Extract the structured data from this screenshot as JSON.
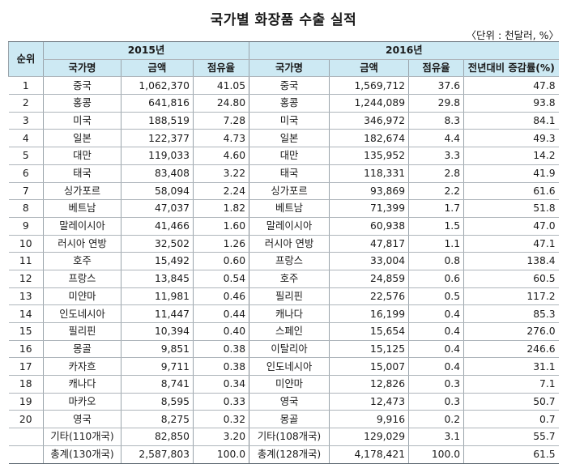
{
  "title": "국가별 화장품 수출 실적",
  "unit": "〈단위 : 천달러, %〉",
  "headers": {
    "rank": "순위",
    "y2015": "2015년",
    "y2016": "2016년",
    "country": "국가명",
    "amount": "금액",
    "share": "점유율",
    "growth": "전년대비 증감률(%)"
  },
  "rows": [
    {
      "rank": "1",
      "c15": "중국",
      "a15": "1,062,370",
      "s15": "41.05",
      "c16": "중국",
      "a16": "1,569,712",
      "s16": "37.6",
      "g16": "47.8"
    },
    {
      "rank": "2",
      "c15": "홍콩",
      "a15": "641,816",
      "s15": "24.80",
      "c16": "홍콩",
      "a16": "1,244,089",
      "s16": "29.8",
      "g16": "93.8"
    },
    {
      "rank": "3",
      "c15": "미국",
      "a15": "188,519",
      "s15": "7.28",
      "c16": "미국",
      "a16": "346,972",
      "s16": "8.3",
      "g16": "84.1"
    },
    {
      "rank": "4",
      "c15": "일본",
      "a15": "122,377",
      "s15": "4.73",
      "c16": "일본",
      "a16": "182,674",
      "s16": "4.4",
      "g16": "49.3"
    },
    {
      "rank": "5",
      "c15": "대만",
      "a15": "119,033",
      "s15": "4.60",
      "c16": "대만",
      "a16": "135,952",
      "s16": "3.3",
      "g16": "14.2"
    },
    {
      "rank": "6",
      "c15": "태국",
      "a15": "83,408",
      "s15": "3.22",
      "c16": "태국",
      "a16": "118,331",
      "s16": "2.8",
      "g16": "41.9"
    },
    {
      "rank": "7",
      "c15": "싱가포르",
      "a15": "58,094",
      "s15": "2.24",
      "c16": "싱가포르",
      "a16": "93,869",
      "s16": "2.2",
      "g16": "61.6"
    },
    {
      "rank": "8",
      "c15": "베트남",
      "a15": "47,037",
      "s15": "1.82",
      "c16": "베트남",
      "a16": "71,399",
      "s16": "1.7",
      "g16": "51.8"
    },
    {
      "rank": "9",
      "c15": "말레이시아",
      "a15": "41,466",
      "s15": "1.60",
      "c16": "말레이시아",
      "a16": "60,938",
      "s16": "1.5",
      "g16": "47.0"
    },
    {
      "rank": "10",
      "c15": "러시아 연방",
      "a15": "32,502",
      "s15": "1.26",
      "c16": "러시아 연방",
      "a16": "47,817",
      "s16": "1.1",
      "g16": "47.1"
    },
    {
      "rank": "11",
      "c15": "호주",
      "a15": "15,492",
      "s15": "0.60",
      "c16": "프랑스",
      "a16": "33,004",
      "s16": "0.8",
      "g16": "138.4"
    },
    {
      "rank": "12",
      "c15": "프랑스",
      "a15": "13,845",
      "s15": "0.54",
      "c16": "호주",
      "a16": "24,859",
      "s16": "0.6",
      "g16": "60.5"
    },
    {
      "rank": "13",
      "c15": "미얀마",
      "a15": "11,981",
      "s15": "0.46",
      "c16": "필리핀",
      "a16": "22,576",
      "s16": "0.5",
      "g16": "117.2"
    },
    {
      "rank": "14",
      "c15": "인도네시아",
      "a15": "11,447",
      "s15": "0.44",
      "c16": "캐나다",
      "a16": "16,199",
      "s16": "0.4",
      "g16": "85.3"
    },
    {
      "rank": "15",
      "c15": "필리핀",
      "a15": "10,394",
      "s15": "0.40",
      "c16": "스페인",
      "a16": "15,654",
      "s16": "0.4",
      "g16": "276.0"
    },
    {
      "rank": "16",
      "c15": "몽골",
      "a15": "9,851",
      "s15": "0.38",
      "c16": "이탈리아",
      "a16": "15,125",
      "s16": "0.4",
      "g16": "246.6"
    },
    {
      "rank": "17",
      "c15": "카자흐",
      "a15": "9,711",
      "s15": "0.38",
      "c16": "인도네시아",
      "a16": "15,007",
      "s16": "0.4",
      "g16": "31.1"
    },
    {
      "rank": "18",
      "c15": "캐나다",
      "a15": "8,741",
      "s15": "0.34",
      "c16": "미얀마",
      "a16": "12,826",
      "s16": "0.3",
      "g16": "7.1"
    },
    {
      "rank": "19",
      "c15": "마카오",
      "a15": "8,595",
      "s15": "0.33",
      "c16": "영국",
      "a16": "12,473",
      "s16": "0.3",
      "g16": "50.7"
    },
    {
      "rank": "20",
      "c15": "영국",
      "a15": "8,275",
      "s15": "0.32",
      "c16": "몽골",
      "a16": "9,916",
      "s16": "0.2",
      "g16": "0.7"
    },
    {
      "rank": "",
      "c15": "기타(110개국)",
      "a15": "82,850",
      "s15": "3.20",
      "c16": "기타(108개국)",
      "a16": "129,029",
      "s16": "3.1",
      "g16": "55.7"
    },
    {
      "rank": "",
      "c15": "총계(130개국)",
      "a15": "2,587,803",
      "s15": "100.0",
      "c16": "총계(128개국)",
      "a16": "4,178,421",
      "s16": "100.0",
      "g16": "61.5"
    }
  ]
}
